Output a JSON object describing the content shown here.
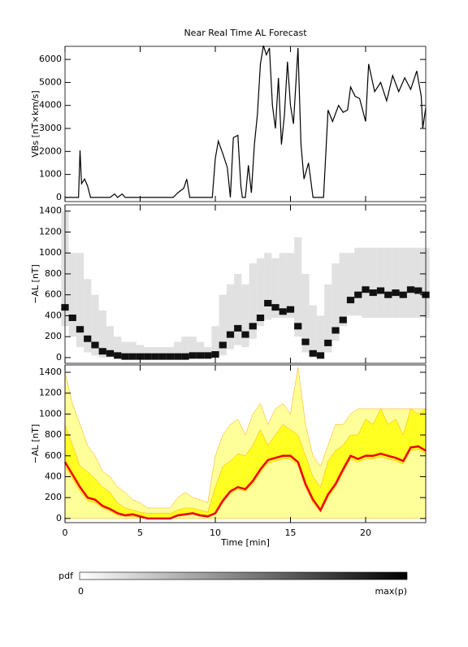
{
  "chart_data": [
    {
      "type": "line",
      "title": "Near Real Time AL Forecast",
      "ylabel": "VBs [nT×km/s]",
      "color": "#000000",
      "xlim": [
        0,
        24
      ],
      "xticks": [
        0,
        5,
        10,
        15,
        20
      ],
      "ylim": [
        -180,
        6570
      ],
      "yticks": [
        0,
        1000,
        2000,
        3000,
        4000,
        5000,
        6000
      ],
      "x": [
        0,
        0.9,
        1.0,
        1.1,
        1.3,
        1.5,
        1.7,
        2.0,
        3.0,
        3.3,
        3.5,
        3.8,
        4.0,
        7.2,
        7.5,
        7.9,
        8.1,
        8.3,
        9.8,
        10.0,
        10.2,
        10.5,
        10.8,
        11.0,
        11.2,
        11.5,
        11.7,
        11.8,
        12.0,
        12.2,
        12.4,
        12.6,
        12.8,
        13.0,
        13.2,
        13.4,
        13.6,
        13.8,
        14.0,
        14.2,
        14.4,
        14.6,
        14.8,
        15.0,
        15.2,
        15.5,
        15.7,
        15.9,
        16.2,
        16.5,
        17.2,
        17.5,
        17.8,
        18.2,
        18.5,
        18.8,
        19.0,
        19.3,
        19.6,
        20.0,
        20.2,
        20.6,
        21.0,
        21.4,
        21.8,
        22.2,
        22.6,
        23.0,
        23.4,
        23.7,
        23.8,
        24
      ],
      "values": [
        0,
        0,
        2050,
        600,
        800,
        500,
        0,
        0,
        0,
        150,
        0,
        150,
        0,
        0,
        200,
        400,
        800,
        0,
        0,
        1700,
        2450,
        1900,
        1300,
        0,
        2600,
        2700,
        500,
        0,
        0,
        1400,
        200,
        2300,
        3600,
        5800,
        6600,
        6200,
        6500,
        4000,
        3000,
        5200,
        2300,
        3600,
        5900,
        4000,
        3200,
        6500,
        2300,
        800,
        1500,
        0,
        0,
        3800,
        3300,
        4000,
        3700,
        3800,
        4800,
        4400,
        4300,
        3300,
        5800,
        4600,
        5000,
        4200,
        5300,
        4600,
        5200,
        4700,
        5500,
        4400,
        3000,
        3900
      ]
    },
    {
      "type": "density",
      "ylabel": "−AL [nT]",
      "colors": {
        "spread": "#d4d4d4",
        "mode": "#111111"
      },
      "xlim": [
        0,
        24
      ],
      "xticks": [
        0,
        5,
        10,
        15,
        20
      ],
      "ylim": [
        -55,
        1460
      ],
      "yticks": [
        0,
        200,
        400,
        600,
        800,
        1000,
        1200,
        1400
      ],
      "x": [
        0,
        0.5,
        1,
        1.5,
        2,
        2.5,
        3,
        3.5,
        4,
        4.5,
        5,
        5.5,
        6,
        6.5,
        7,
        7.5,
        8,
        8.5,
        9,
        9.5,
        10,
        10.5,
        11,
        11.5,
        12,
        12.5,
        13,
        13.5,
        14,
        14.5,
        15,
        15.5,
        16,
        16.5,
        17,
        17.5,
        18,
        18.5,
        19,
        19.5,
        20,
        20.5,
        21,
        21.5,
        22,
        22.5,
        23,
        23.5,
        24
      ],
      "low": [
        300,
        200,
        100,
        50,
        20,
        0,
        0,
        0,
        0,
        0,
        0,
        0,
        0,
        0,
        0,
        0,
        0,
        0,
        0,
        0,
        0,
        20,
        80,
        120,
        100,
        180,
        300,
        360,
        380,
        380,
        380,
        200,
        50,
        0,
        0,
        50,
        160,
        300,
        400,
        400,
        380,
        380,
        380,
        380,
        380,
        380,
        380,
        380,
        380
      ],
      "high": [
        1400,
        1000,
        1000,
        750,
        600,
        450,
        300,
        200,
        150,
        150,
        120,
        100,
        100,
        100,
        100,
        150,
        200,
        200,
        150,
        100,
        300,
        600,
        700,
        800,
        700,
        900,
        950,
        1000,
        950,
        1000,
        1000,
        1150,
        800,
        500,
        400,
        700,
        900,
        1000,
        1000,
        1050,
        1050,
        1050,
        1050,
        1050,
        1050,
        1050,
        1050,
        1050,
        1050
      ],
      "mode": [
        480,
        380,
        270,
        180,
        120,
        60,
        40,
        20,
        10,
        10,
        10,
        10,
        10,
        10,
        10,
        10,
        10,
        20,
        20,
        20,
        30,
        120,
        220,
        280,
        220,
        300,
        380,
        520,
        480,
        440,
        460,
        300,
        150,
        40,
        20,
        140,
        260,
        360,
        550,
        600,
        650,
        620,
        640,
        600,
        620,
        600,
        650,
        640,
        600
      ]
    },
    {
      "type": "range",
      "ylabel": "−AL [nT]",
      "xlabel": "Time [min]",
      "colors": {
        "envelope": "#ffff99",
        "band": "#ffff22",
        "edge": "#ffa500",
        "line": "#ee0000"
      },
      "xlim": [
        0,
        24
      ],
      "xticks": [
        0,
        5,
        10,
        15,
        20
      ],
      "ylim": [
        -40,
        1470
      ],
      "yticks": [
        0,
        200,
        400,
        600,
        800,
        1000,
        1200,
        1400
      ],
      "x": [
        0,
        0.5,
        1,
        1.5,
        2,
        2.5,
        3,
        3.5,
        4,
        4.5,
        5,
        5.5,
        6,
        6.5,
        7,
        7.5,
        8,
        8.5,
        9,
        9.5,
        10,
        10.5,
        11,
        11.5,
        12,
        12.5,
        13,
        13.5,
        14,
        14.5,
        15,
        15.5,
        16,
        16.5,
        17,
        17.5,
        18,
        18.5,
        19,
        19.5,
        20,
        20.5,
        21,
        21.5,
        22,
        22.5,
        23,
        23.5,
        24
      ],
      "envelope": [
        1400,
        1100,
        900,
        700,
        600,
        450,
        400,
        300,
        250,
        180,
        150,
        100,
        100,
        100,
        100,
        200,
        250,
        200,
        180,
        150,
        600,
        800,
        900,
        950,
        800,
        1000,
        1100,
        900,
        1050,
        1100,
        1000,
        1450,
        900,
        600,
        500,
        700,
        900,
        900,
        1000,
        1050,
        1050,
        1050,
        1050,
        1050,
        1050,
        1050,
        1050,
        1050,
        1050
      ],
      "upper": [
        900,
        700,
        500,
        450,
        380,
        300,
        250,
        150,
        100,
        80,
        60,
        50,
        50,
        50,
        50,
        80,
        100,
        100,
        80,
        60,
        300,
        500,
        550,
        620,
        600,
        700,
        850,
        700,
        800,
        900,
        850,
        800,
        600,
        400,
        300,
        550,
        650,
        700,
        800,
        800,
        950,
        900,
        1050,
        900,
        950,
        800,
        1050,
        1000,
        1050
      ],
      "lower": [
        500,
        380,
        260,
        170,
        150,
        100,
        70,
        30,
        20,
        20,
        10,
        0,
        0,
        0,
        0,
        20,
        30,
        40,
        20,
        10,
        40,
        150,
        240,
        280,
        260,
        330,
        440,
        530,
        550,
        570,
        570,
        510,
        300,
        150,
        60,
        200,
        300,
        440,
        570,
        540,
        570,
        570,
        590,
        570,
        550,
        520,
        650,
        660,
        620
      ],
      "values": [
        540,
        420,
        300,
        200,
        180,
        120,
        90,
        50,
        30,
        40,
        20,
        0,
        0,
        0,
        0,
        30,
        40,
        50,
        30,
        20,
        50,
        170,
        260,
        300,
        280,
        360,
        470,
        560,
        580,
        600,
        600,
        540,
        330,
        180,
        80,
        230,
        330,
        470,
        600,
        570,
        600,
        600,
        620,
        600,
        580,
        550,
        680,
        690,
        650
      ]
    }
  ],
  "colorbar": {
    "label": "pdf",
    "min_label": "0",
    "max_label": "max(p)"
  }
}
